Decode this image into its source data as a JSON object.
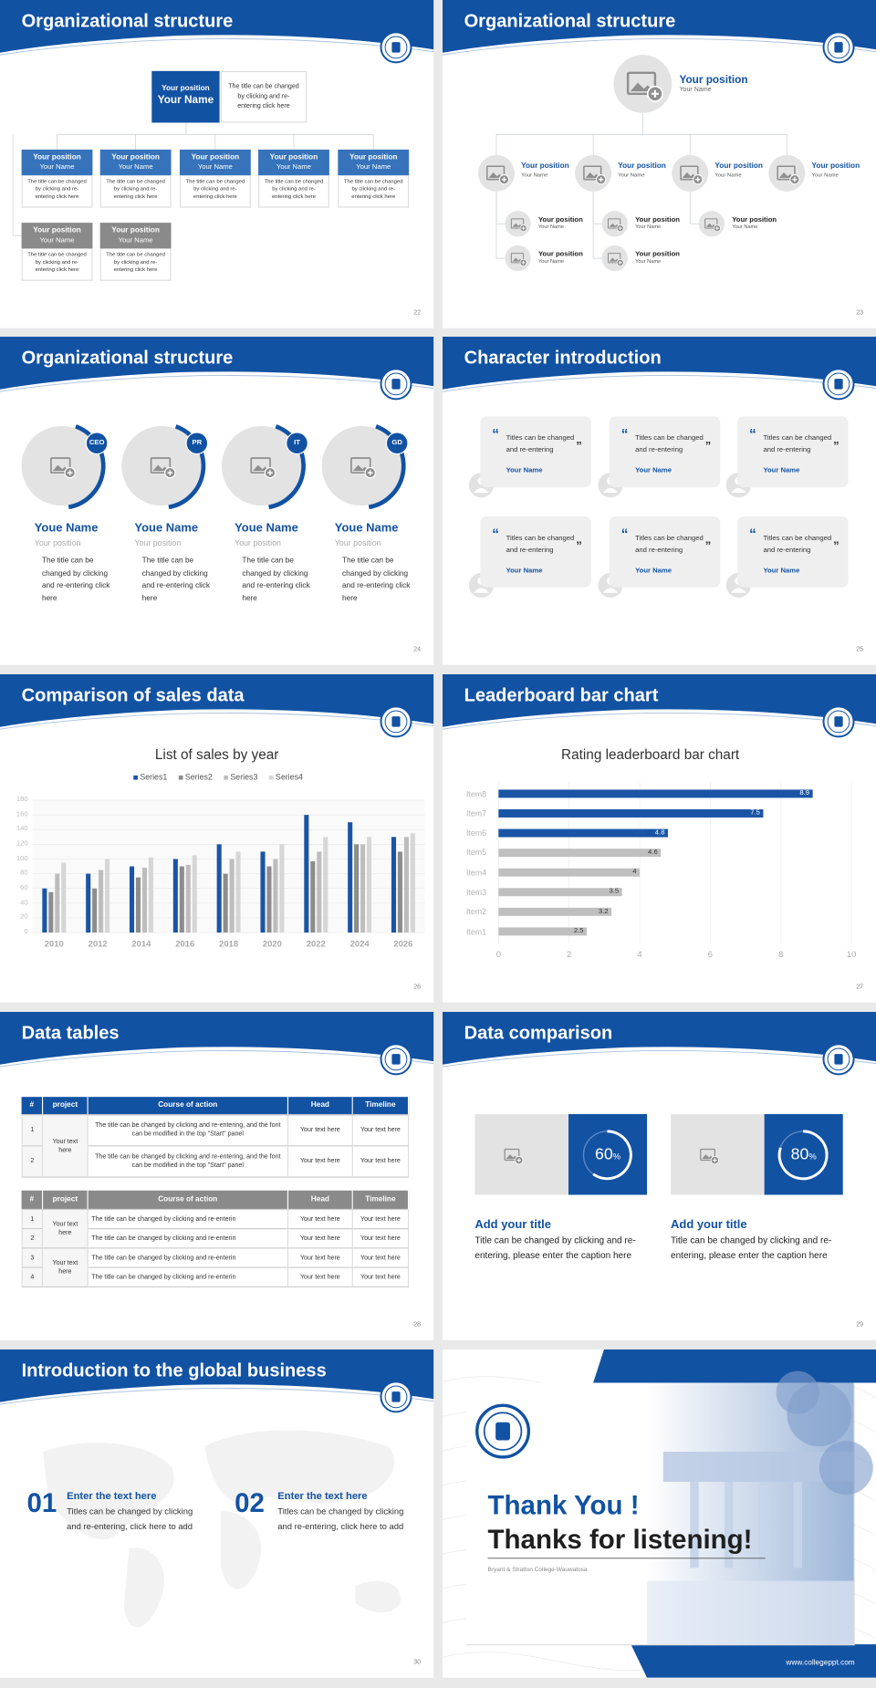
{
  "slides": [
    {
      "number": "22",
      "title": "Organizational structure",
      "top": {
        "position": "Your position",
        "name": "Your Name",
        "note": "The title can be changed by clicking and re-entering click here"
      },
      "members": [
        {
          "position": "Your position",
          "name": "Your Name",
          "note": "The title can be changed by clicking and re-entering click here",
          "color": "#3673bb"
        },
        {
          "position": "Your position",
          "name": "Your Name",
          "note": "The title can be changed by clicking and re-entering click here",
          "color": "#3673bb"
        },
        {
          "position": "Your position",
          "name": "Your Name",
          "note": "The title can be changed by clicking and re-entering click here",
          "color": "#3673bb"
        },
        {
          "position": "Your position",
          "name": "Your Name",
          "note": "The title can be changed by clicking and re-entering click here",
          "color": "#3673bb"
        },
        {
          "position": "Your position",
          "name": "Your Name",
          "note": "The title can be changed by clicking and re-entering click here",
          "color": "#3673bb"
        },
        {
          "position": "Your position",
          "name": "Your Name",
          "note": "The title can be changed by clicking and re-entering click here",
          "color": "#8a8a8a"
        },
        {
          "position": "Your position",
          "name": "Your Name",
          "note": "The title can be changed by clicking and re-entering click here",
          "color": "#8a8a8a"
        }
      ]
    },
    {
      "number": "23",
      "title": "Organizational structure",
      "top": {
        "position": "Your position",
        "name": "Your Name"
      },
      "nodes": [
        {
          "position": "Your position",
          "name": "Your Name",
          "children": [
            {
              "position": "Your position",
              "name": "Your Name"
            },
            {
              "position": "Your position",
              "name": "Your Name"
            }
          ]
        },
        {
          "position": "Your position",
          "name": "Your Name",
          "children": [
            {
              "position": "Your position",
              "name": "Your Name"
            },
            {
              "position": "Your position",
              "name": "Your Name"
            }
          ]
        },
        {
          "position": "Your position",
          "name": "Your Name",
          "children": [
            {
              "position": "Your position",
              "name": "Your Name"
            }
          ]
        },
        {
          "position": "Your position",
          "name": "Your Name"
        }
      ]
    },
    {
      "number": "24",
      "title": "Organizational structure",
      "people": [
        {
          "tag": "CEO",
          "name": "Youe Name",
          "position": "Your position",
          "note": "The title can be changed by clicking and re-entering click here"
        },
        {
          "tag": "PR",
          "name": "Youe Name",
          "position": "Your position",
          "note": "The title can be changed by clicking and re-entering click here"
        },
        {
          "tag": "IT",
          "name": "Youe Name",
          "position": "Your position",
          "note": "The title can be changed by clicking and re-entering click here"
        },
        {
          "tag": "GD",
          "name": "Youe Name",
          "position": "Your position",
          "note": "The title can be changed by clicking and re-entering click here"
        }
      ]
    },
    {
      "number": "25",
      "title": "Character introduction",
      "quote_marks": [
        "“",
        "”"
      ],
      "cards": [
        {
          "quote": "Titles can be changed and re-entering",
          "name": "Your Name"
        },
        {
          "quote": "Titles can be changed and re-entering",
          "name": "Your Name"
        },
        {
          "quote": "Titles can be changed and re-entering",
          "name": "Your Name"
        },
        {
          "quote": "Titles can be changed and re-entering",
          "name": "Your Name"
        },
        {
          "quote": "Titles can be changed and re-entering",
          "name": "Your Name"
        },
        {
          "quote": "Titles can be changed and re-entering",
          "name": "Your Name"
        }
      ]
    },
    {
      "number": "26",
      "title": "Comparison of sales data"
    },
    {
      "number": "27",
      "title": "Leaderboard bar chart"
    },
    {
      "number": "28",
      "title": "Data tables",
      "tables": [
        {
          "header": [
            "#",
            "project",
            "Course of action",
            "Head",
            "Timeline"
          ],
          "groups": [
            {
              "project": "Your text here",
              "rows": [
                {
                  "num": 1,
                  "action": "The title can be changed by clicking and re-entering, and the font can be modified in the top \"Start\" panel",
                  "head": "Your text here",
                  "timeline": "Your text here"
                },
                {
                  "num": 2,
                  "action": "The title can be changed by clicking and re-entering, and the font can be modified in the top \"Start\" panel",
                  "head": "Your text here",
                  "timeline": "Your text here"
                }
              ]
            }
          ]
        },
        {
          "header": [
            "#",
            "project",
            "Course of action",
            "Head",
            "Timeline"
          ],
          "groups": [
            {
              "project": "Your text here",
              "rows": [
                {
                  "num": 1,
                  "action": "The title can be changed by clicking and re-enterin",
                  "head": "Your text here",
                  "timeline": "Your text here"
                },
                {
                  "num": 2,
                  "action": "The title can be changed by clicking and re-enterin",
                  "head": "Your text here",
                  "timeline": "Your text here"
                }
              ]
            },
            {
              "project": "Your text here",
              "rows": [
                {
                  "num": 3,
                  "action": "The title can be changed by clicking and re-enterin",
                  "head": "Your text here",
                  "timeline": "Your text here"
                },
                {
                  "num": 4,
                  "action": "The title can be changed by clicking and re-enterin",
                  "head": "Your text here",
                  "timeline": "Your text here"
                }
              ]
            }
          ]
        }
      ]
    },
    {
      "number": "29",
      "title": "Data comparison",
      "items": [
        {
          "value": 60,
          "unit": "%",
          "title": "Add your title",
          "caption": "Title can be changed by clicking and re-entering, please enter the caption here"
        },
        {
          "value": 80,
          "unit": "%",
          "title": "Add your title",
          "caption": "Title can be changed by clicking and re-entering, please enter the caption here"
        }
      ]
    },
    {
      "number": "30",
      "title": "Introduction to the global business",
      "items": [
        {
          "index": "01",
          "heading": "Enter the text here",
          "text": "Titles can be changed by clicking and re-entering, click here to add"
        },
        {
          "index": "02",
          "heading": "Enter the text here",
          "text": "Titles can be changed by clicking and re-entering, click here to add"
        }
      ]
    },
    {
      "thanks": "Thank You !",
      "subtitle": "Thanks for listening!",
      "college": "Bryant & Stratton College-Wauwatosa",
      "website": "www.collegeppt.com"
    }
  ],
  "chart_data": [
    {
      "type": "bar",
      "title": "List of sales by year",
      "categories": [
        "2010",
        "2012",
        "2014",
        "2016",
        "2018",
        "2020",
        "2022",
        "2024",
        "2026"
      ],
      "series": [
        {
          "name": "Series1",
          "color": "#1a55a5",
          "values": [
            60,
            80,
            90,
            100,
            120,
            110,
            160,
            150,
            130
          ]
        },
        {
          "name": "Series2",
          "color": "#8d8d8d",
          "values": [
            55,
            60,
            75,
            90,
            80,
            90,
            97,
            120,
            110
          ]
        },
        {
          "name": "Series3",
          "color": "#bdbdbd",
          "values": [
            80,
            85,
            88,
            92,
            100,
            100,
            110,
            120,
            130
          ]
        },
        {
          "name": "Series4",
          "color": "#d6d6d6",
          "values": [
            95,
            100,
            102,
            105,
            110,
            120,
            130,
            130,
            135
          ]
        }
      ],
      "ylim": [
        0,
        180
      ],
      "yticks": [
        0,
        20,
        40,
        60,
        80,
        100,
        120,
        140,
        160,
        180
      ],
      "grid": true
    },
    {
      "type": "bar",
      "orientation": "horizontal",
      "title": "Rating leaderboard bar chart",
      "categories": [
        "Item8",
        "Item7",
        "Item6",
        "Item5",
        "Item4",
        "Item3",
        "Item2",
        "Item1"
      ],
      "values": [
        8.9,
        7.5,
        4.8,
        4.6,
        4,
        3.5,
        3.2,
        2.5
      ],
      "colors": [
        "#1a55a5",
        "#1a55a5",
        "#1a55a5",
        "#bfbfbf",
        "#bfbfbf",
        "#bfbfbf",
        "#bfbfbf",
        "#bfbfbf"
      ],
      "xlim": [
        0,
        10
      ],
      "xticks": [
        0,
        2,
        4,
        6,
        8,
        10
      ],
      "grid": true
    }
  ]
}
